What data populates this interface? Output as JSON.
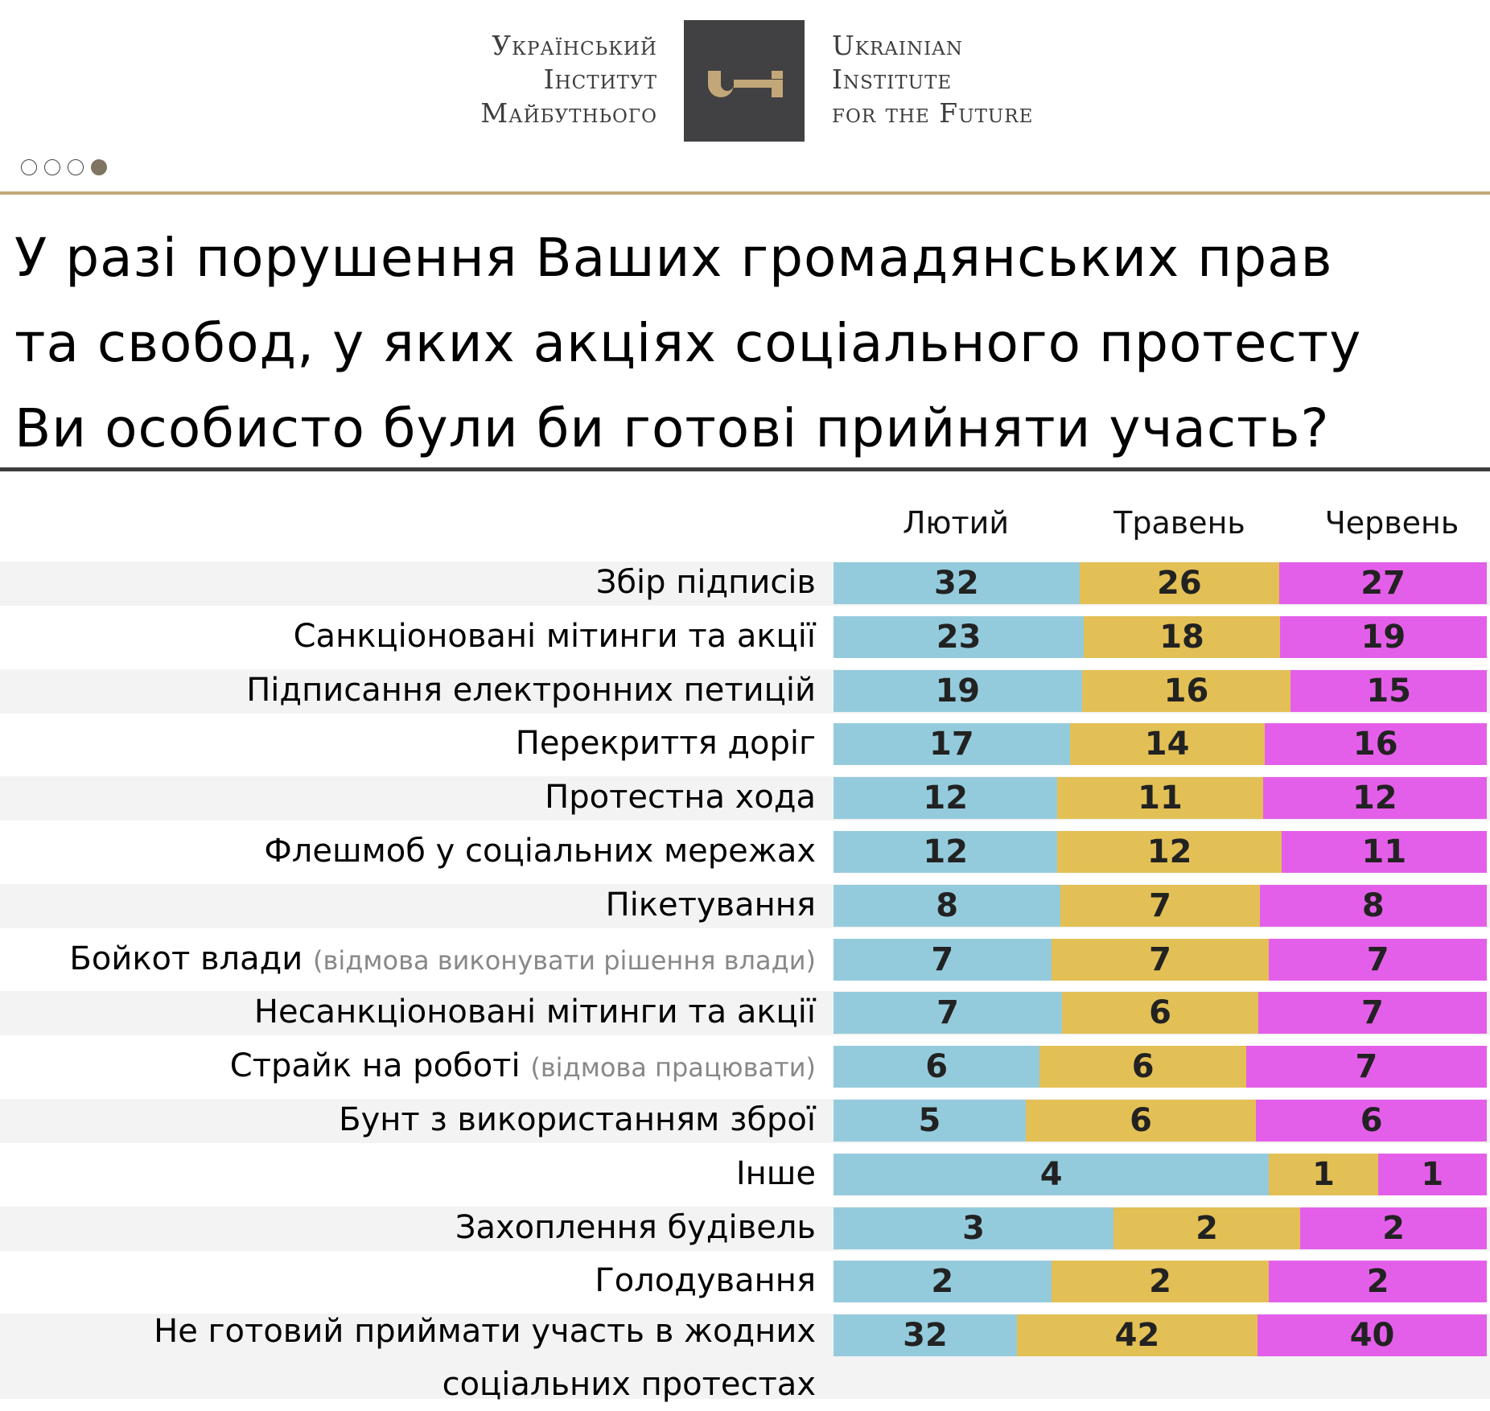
{
  "header": {
    "logo_left_lines": [
      "Український",
      "Інститут",
      "Майбутнього"
    ],
    "logo_right_lines": [
      "Ukrainian",
      "Institute",
      "for the Future"
    ],
    "logo_icon": "key-icon",
    "pagination": {
      "total": 4,
      "active": 4
    }
  },
  "title_lines": [
    "У разі порушення Ваших громадянських прав",
    "та свобод, у яких акціях соціального протесту",
    "Ви особисто були би готові прийняти участь?"
  ],
  "colors": {
    "feb": "#94cbdc",
    "may": "#e3c055",
    "jun": "#e45fe9",
    "gold": "#c2a878",
    "logo_bg": "#414042"
  },
  "chart_data": {
    "type": "bar",
    "stacked": true,
    "title": "У разі порушення Ваших громадянських прав та свобод, у яких акціях соціального протесту Ви особисто були би готові прийняти участь?",
    "series_names": [
      "Лютий",
      "Травень",
      "Червень"
    ],
    "rows": [
      {
        "label": "Збір підписів",
        "sub": "",
        "values": [
          32,
          26,
          27
        ]
      },
      {
        "label": "Санкціоновані мітинги та акції",
        "sub": "",
        "values": [
          23,
          18,
          19
        ]
      },
      {
        "label": "Підписання електронних петицій",
        "sub": "",
        "values": [
          19,
          16,
          15
        ]
      },
      {
        "label": "Перекриття доріг",
        "sub": "",
        "values": [
          17,
          14,
          16
        ]
      },
      {
        "label": "Протестна хода",
        "sub": "",
        "values": [
          12,
          11,
          12
        ]
      },
      {
        "label": "Флешмоб у соціальних мережах",
        "sub": "",
        "values": [
          12,
          12,
          11
        ]
      },
      {
        "label": "Пікетування",
        "sub": "",
        "values": [
          8,
          7,
          8
        ]
      },
      {
        "label": "Бойкот влади",
        "sub": "(відмова виконувати рішення влади)",
        "values": [
          7,
          7,
          7
        ]
      },
      {
        "label": "Несанкціоновані мітинги та акції",
        "sub": "",
        "values": [
          7,
          6,
          7
        ]
      },
      {
        "label": "Страйк на роботі",
        "sub": "(відмова працювати)",
        "values": [
          6,
          6,
          7
        ]
      },
      {
        "label": "Бунт з використанням зброї",
        "sub": "",
        "values": [
          5,
          6,
          6
        ]
      },
      {
        "label": "Інше",
        "sub": "",
        "values": [
          4,
          1,
          1
        ]
      },
      {
        "label": "Захоплення будівель",
        "sub": "",
        "values": [
          3,
          2,
          2
        ]
      },
      {
        "label": "Голодування",
        "sub": "",
        "values": [
          2,
          2,
          2
        ]
      },
      {
        "label": "Не готовий приймати участь  в жодних",
        "label2": "соціальних протестах",
        "sub": "",
        "values": [
          32,
          42,
          40
        ]
      }
    ],
    "unit": "%",
    "legend": "top"
  }
}
